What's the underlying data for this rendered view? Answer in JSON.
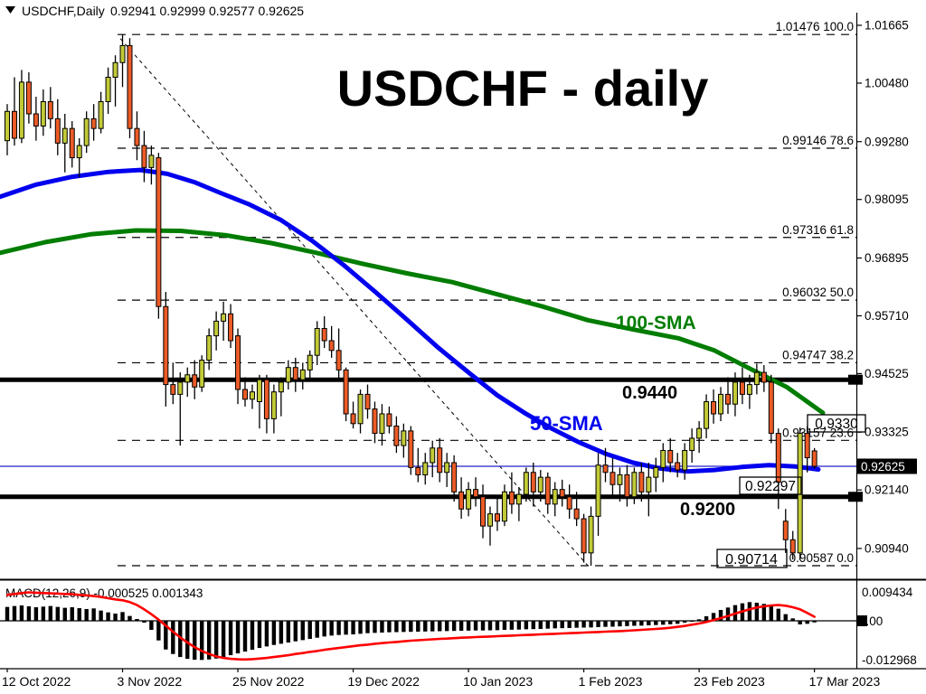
{
  "header": {
    "collapse_icon": "triangle-down-icon",
    "symbol": "USDCHF,Daily",
    "ohlc": "0.92941 0.92999 0.92577 0.92625"
  },
  "title": "USDCHF - daily",
  "overlays": {
    "sma100_label": "100-SMA",
    "sma50_label": "50-SMA",
    "resistance_label": "0.9440",
    "support_label": "0.9200",
    "annotations": [
      {
        "text": "0.9330"
      },
      {
        "text": "0.92297"
      },
      {
        "text": "0.90714"
      }
    ]
  },
  "price_axis": {
    "current_label": "0.92625",
    "current_price": 0.92625,
    "ticks": [
      {
        "label": "1.01665",
        "price": 1.01665
      },
      {
        "label": "1.00480",
        "price": 1.0048
      },
      {
        "label": "0.99280",
        "price": 0.9928
      },
      {
        "label": "0.98095",
        "price": 0.98095
      },
      {
        "label": "0.96895",
        "price": 0.96895
      },
      {
        "label": "0.95710",
        "price": 0.9571
      },
      {
        "label": "0.94525",
        "price": 0.94525
      },
      {
        "label": "0.93325",
        "price": 0.93325
      },
      {
        "label": "0.92140",
        "price": 0.9214
      },
      {
        "label": "0.90940",
        "price": 0.9094
      }
    ]
  },
  "time_axis": {
    "labels": [
      {
        "text": "12 Oct 2022",
        "i": 0
      },
      {
        "text": "3 Nov 2022",
        "i": 16
      },
      {
        "text": "25 Nov 2022",
        "i": 32
      },
      {
        "text": "19 Dec 2022",
        "i": 48
      },
      {
        "text": "10 Jan 2023",
        "i": 64
      },
      {
        "text": "1 Feb 2023",
        "i": 80
      },
      {
        "text": "23 Feb 2023",
        "i": 96
      },
      {
        "text": "17 Mar 2023",
        "i": 112
      }
    ]
  },
  "macd_panel": {
    "label": "MACD(12,26,9) -0.000525 0.001343",
    "axis_max": "0.009434",
    "axis_zero": "0.00",
    "axis_min": "-0.012968"
  },
  "colors": {
    "bull": "#c2cb37",
    "bear": "#ec5b26",
    "sma50": "#0000ee",
    "sma100": "#007d00",
    "signal": "#ff0000",
    "histogram": "#000000",
    "current_line": "#2323c8",
    "level_line": "#000000"
  },
  "chart_data": {
    "type": "candlestick",
    "symbol": "USDCHF",
    "timeframe": "Daily",
    "x_range": [
      "12 Oct 2022",
      "17 Mar 2023"
    ],
    "price_range_axis": [
      0.9094,
      1.01665
    ],
    "support_resistance": [
      {
        "label": "0.9440",
        "price": 0.944
      },
      {
        "label": "0.9200",
        "price": 0.92
      }
    ],
    "fib_levels": [
      {
        "price": 1.01476,
        "pct": "100.0",
        "label": "1.01476 100.0"
      },
      {
        "price": 0.99146,
        "pct": "78.6",
        "label": "0.99146 78.6"
      },
      {
        "price": 0.97316,
        "pct": "61.8",
        "label": "0.97316 61.8"
      },
      {
        "price": 0.96032,
        "pct": "50.0",
        "label": "0.96032 50.0"
      },
      {
        "price": 0.94747,
        "pct": "38.2",
        "label": "0.94747 38.2"
      },
      {
        "price": 0.93157,
        "pct": "23.6",
        "label": "0.93157 23.6"
      },
      {
        "price": 0.90587,
        "pct": "0.0",
        "label": "0.90587 0.0"
      }
    ],
    "trendline": {
      "i1": 15.7,
      "p1": 1.0139,
      "i2": 80.5,
      "p2": 0.906
    },
    "annotations": [
      {
        "text": "0.9330",
        "price": 0.933
      },
      {
        "text": "0.92297",
        "price": 0.92297
      },
      {
        "text": "0.90714",
        "price": 0.90714
      }
    ],
    "candles_format": [
      "open",
      "high",
      "low",
      "close"
    ],
    "candles": [
      [
        0.993,
        1.0005,
        0.99,
        0.999
      ],
      [
        0.999,
        1.006,
        0.992,
        0.9935
      ],
      [
        0.9935,
        1.0075,
        0.9925,
        1.005
      ],
      [
        1.005,
        1.007,
        0.9965,
        0.9985
      ],
      [
        0.9985,
        1.002,
        0.993,
        0.996
      ],
      [
        0.996,
        1.0035,
        0.994,
        1.001
      ],
      [
        1.001,
        1.004,
        0.9955,
        0.9975
      ],
      [
        0.9975,
        1.0015,
        0.99,
        0.9925
      ],
      [
        0.9925,
        0.9985,
        0.9865,
        0.9955
      ],
      [
        0.9955,
        0.997,
        0.9875,
        0.9895
      ],
      [
        0.9895,
        0.9935,
        0.9855,
        0.992
      ],
      [
        0.992,
        0.999,
        0.9905,
        0.9975
      ],
      [
        0.9975,
        1.0005,
        0.993,
        0.9955
      ],
      [
        0.9955,
        1.003,
        0.9945,
        1.001
      ],
      [
        1.001,
        1.008,
        0.9985,
        1.006
      ],
      [
        1.006,
        1.0105,
        1.0,
        1.009
      ],
      [
        1.009,
        1.01476,
        1.004,
        1.0125
      ],
      [
        1.0125,
        1.014,
        0.9935,
        0.9955
      ],
      [
        0.9955,
        0.999,
        0.989,
        0.992
      ],
      [
        0.992,
        0.995,
        0.9845,
        0.9875
      ],
      [
        0.9875,
        0.992,
        0.984,
        0.99
      ],
      [
        0.9895,
        0.9905,
        0.9565,
        0.959
      ],
      [
        0.959,
        0.962,
        0.9385,
        0.943
      ],
      [
        0.943,
        0.9475,
        0.939,
        0.941
      ],
      [
        0.941,
        0.9455,
        0.9305,
        0.9435
      ],
      [
        0.9435,
        0.9465,
        0.9405,
        0.945
      ],
      [
        0.945,
        0.948,
        0.94,
        0.9425
      ],
      [
        0.9425,
        0.949,
        0.9415,
        0.948
      ],
      [
        0.948,
        0.9545,
        0.946,
        0.953
      ],
      [
        0.953,
        0.958,
        0.95,
        0.956
      ],
      [
        0.956,
        0.96,
        0.952,
        0.9575
      ],
      [
        0.9575,
        0.9595,
        0.9505,
        0.952
      ],
      [
        0.953,
        0.9545,
        0.939,
        0.942
      ],
      [
        0.942,
        0.9445,
        0.9385,
        0.94
      ],
      [
        0.94,
        0.943,
        0.938,
        0.9415
      ],
      [
        0.9395,
        0.945,
        0.934,
        0.944
      ],
      [
        0.944,
        0.945,
        0.933,
        0.936
      ],
      [
        0.936,
        0.943,
        0.933,
        0.9415
      ],
      [
        0.9415,
        0.9445,
        0.9365,
        0.9435
      ],
      [
        0.9435,
        0.948,
        0.942,
        0.9465
      ],
      [
        0.9465,
        0.9485,
        0.9415,
        0.944
      ],
      [
        0.944,
        0.9475,
        0.942,
        0.946
      ],
      [
        0.946,
        0.95,
        0.944,
        0.949
      ],
      [
        0.949,
        0.956,
        0.947,
        0.9545
      ],
      [
        0.9545,
        0.957,
        0.9505,
        0.952
      ],
      [
        0.952,
        0.955,
        0.9485,
        0.95
      ],
      [
        0.95,
        0.9545,
        0.944,
        0.946
      ],
      [
        0.946,
        0.9465,
        0.9355,
        0.937
      ],
      [
        0.937,
        0.9395,
        0.934,
        0.935
      ],
      [
        0.935,
        0.942,
        0.933,
        0.941
      ],
      [
        0.941,
        0.943,
        0.936,
        0.938
      ],
      [
        0.938,
        0.9395,
        0.931,
        0.933
      ],
      [
        0.933,
        0.939,
        0.9305,
        0.937
      ],
      [
        0.937,
        0.9385,
        0.933,
        0.9345
      ],
      [
        0.9345,
        0.9365,
        0.929,
        0.9305
      ],
      [
        0.9305,
        0.935,
        0.928,
        0.9335
      ],
      [
        0.9335,
        0.9345,
        0.9245,
        0.926
      ],
      [
        0.926,
        0.93,
        0.923,
        0.9245
      ],
      [
        0.9245,
        0.929,
        0.9225,
        0.927
      ],
      [
        0.927,
        0.9315,
        0.924,
        0.93
      ],
      [
        0.93,
        0.932,
        0.923,
        0.925
      ],
      [
        0.925,
        0.929,
        0.922,
        0.927
      ],
      [
        0.927,
        0.9285,
        0.919,
        0.921
      ],
      [
        0.921,
        0.924,
        0.9155,
        0.9175
      ],
      [
        0.9175,
        0.923,
        0.916,
        0.9215
      ],
      [
        0.9215,
        0.924,
        0.918,
        0.92
      ],
      [
        0.92,
        0.9225,
        0.9115,
        0.914
      ],
      [
        0.914,
        0.918,
        0.91,
        0.9165
      ],
      [
        0.9165,
        0.92,
        0.913,
        0.915
      ],
      [
        0.915,
        0.9225,
        0.914,
        0.921
      ],
      [
        0.921,
        0.925,
        0.9165,
        0.9185
      ],
      [
        0.9185,
        0.922,
        0.915,
        0.9205
      ],
      [
        0.9205,
        0.926,
        0.919,
        0.925
      ],
      [
        0.925,
        0.927,
        0.918,
        0.921
      ],
      [
        0.921,
        0.9255,
        0.919,
        0.924
      ],
      [
        0.924,
        0.925,
        0.9165,
        0.9185
      ],
      [
        0.9185,
        0.923,
        0.916,
        0.9215
      ],
      [
        0.9215,
        0.9235,
        0.918,
        0.92
      ],
      [
        0.92,
        0.9225,
        0.9155,
        0.9175
      ],
      [
        0.9175,
        0.921,
        0.914,
        0.9155
      ],
      [
        0.9155,
        0.9165,
        0.9065,
        0.9085
      ],
      [
        0.9085,
        0.918,
        0.90587,
        0.916
      ],
      [
        0.916,
        0.929,
        0.912,
        0.9265
      ],
      [
        0.9265,
        0.93,
        0.923,
        0.925
      ],
      [
        0.925,
        0.928,
        0.92,
        0.9225
      ],
      [
        0.9225,
        0.926,
        0.919,
        0.9245
      ],
      [
        0.9245,
        0.9265,
        0.918,
        0.92
      ],
      [
        0.92,
        0.926,
        0.9185,
        0.925
      ],
      [
        0.925,
        0.927,
        0.919,
        0.921
      ],
      [
        0.921,
        0.927,
        0.916,
        0.924
      ],
      [
        0.924,
        0.928,
        0.921,
        0.926
      ],
      [
        0.926,
        0.931,
        0.923,
        0.9295
      ],
      [
        0.9295,
        0.932,
        0.925,
        0.927
      ],
      [
        0.927,
        0.929,
        0.924,
        0.9255
      ],
      [
        0.9255,
        0.931,
        0.9235,
        0.9295
      ],
      [
        0.9295,
        0.934,
        0.927,
        0.932
      ],
      [
        0.932,
        0.9355,
        0.929,
        0.934
      ],
      [
        0.934,
        0.941,
        0.932,
        0.9395
      ],
      [
        0.9395,
        0.942,
        0.935,
        0.937
      ],
      [
        0.937,
        0.9425,
        0.9355,
        0.941
      ],
      [
        0.941,
        0.9445,
        0.937,
        0.939
      ],
      [
        0.939,
        0.9455,
        0.9365,
        0.9435
      ],
      [
        0.9435,
        0.9465,
        0.939,
        0.941
      ],
      [
        0.941,
        0.945,
        0.938,
        0.943
      ],
      [
        0.943,
        0.9473,
        0.941,
        0.9455
      ],
      [
        0.9455,
        0.947,
        0.9415,
        0.9435
      ],
      [
        0.9435,
        0.945,
        0.931,
        0.933
      ],
      [
        0.933,
        0.934,
        0.9175,
        0.923
      ],
      [
        0.915,
        0.9175,
        0.9085,
        0.9112
      ],
      [
        0.9112,
        0.913,
        0.90714,
        0.9085
      ],
      [
        0.9085,
        0.9342,
        0.907,
        0.933
      ],
      [
        0.933,
        0.9345,
        0.925,
        0.928
      ],
      [
        0.92941,
        0.92999,
        0.92577,
        0.92625
      ]
    ],
    "sma50_points": [
      [
        0,
        0.9815
      ],
      [
        40,
        0.984
      ],
      [
        80,
        0.9856
      ],
      [
        120,
        0.9866
      ],
      [
        155,
        0.987
      ],
      [
        185,
        0.9862
      ],
      [
        215,
        0.9845
      ],
      [
        245,
        0.9822
      ],
      [
        275,
        0.98
      ],
      [
        310,
        0.9768
      ],
      [
        345,
        0.9725
      ],
      [
        380,
        0.9675
      ],
      [
        415,
        0.962
      ],
      [
        450,
        0.9563
      ],
      [
        485,
        0.9505
      ],
      [
        520,
        0.9452
      ],
      [
        550,
        0.9408
      ],
      [
        580,
        0.9372
      ],
      [
        610,
        0.934
      ],
      [
        640,
        0.9312
      ],
      [
        670,
        0.9288
      ],
      [
        700,
        0.927
      ],
      [
        730,
        0.9258
      ],
      [
        760,
        0.9252
      ],
      [
        790,
        0.9255
      ],
      [
        820,
        0.9261
      ],
      [
        850,
        0.9265
      ],
      [
        880,
        0.9262
      ],
      [
        905,
        0.9256
      ]
    ],
    "sma100_points": [
      [
        0,
        0.97
      ],
      [
        50,
        0.9722
      ],
      [
        100,
        0.9738
      ],
      [
        150,
        0.9746
      ],
      [
        200,
        0.9745
      ],
      [
        250,
        0.9736
      ],
      [
        300,
        0.972
      ],
      [
        350,
        0.97
      ],
      [
        400,
        0.9678
      ],
      [
        450,
        0.9658
      ],
      [
        500,
        0.964
      ],
      [
        550,
        0.9615
      ],
      [
        600,
        0.959
      ],
      [
        650,
        0.9562
      ],
      [
        700,
        0.9543
      ],
      [
        750,
        0.9525
      ],
      [
        790,
        0.95
      ],
      [
        830,
        0.9462
      ],
      [
        870,
        0.9425
      ],
      [
        910,
        0.9372
      ]
    ],
    "macd": {
      "indicator": "MACD(12,26,9)",
      "current_macd": -0.000525,
      "current_signal": 0.001343,
      "axis": {
        "max": 0.009434,
        "zero": 0.0,
        "min": -0.012968
      },
      "hist_x1000": [
        4.6,
        4.9,
        5.1,
        4.8,
        4.5,
        4.7,
        4.9,
        4.6,
        4.3,
        4.5,
        4.2,
        3.9,
        4.1,
        3.4,
        2.8,
        2.4,
        2.9,
        1.6,
        0.6,
        -0.6,
        -3.0,
        -6.5,
        -9.5,
        -11.0,
        -12.0,
        -12.6,
        -12.9,
        -12.968,
        -12.8,
        -12.5,
        -12.0,
        -11.4,
        -10.8,
        -10.2,
        -9.6,
        -9.0,
        -8.5,
        -8.0,
        -7.6,
        -7.2,
        -6.8,
        -6.4,
        -6.0,
        -5.6,
        -5.2,
        -4.9,
        -4.7,
        -4.6,
        -4.5,
        -4.3,
        -4.1,
        -4.0,
        -3.9,
        -3.8,
        -3.75,
        -3.7,
        -3.65,
        -3.6,
        -3.55,
        -3.5,
        -3.45,
        -3.4,
        -3.35,
        -3.3,
        -3.25,
        -3.2,
        -3.2,
        -3.15,
        -3.1,
        -3.0,
        -2.95,
        -2.9,
        -2.8,
        -2.75,
        -2.7,
        -2.6,
        -2.5,
        -2.45,
        -2.4,
        -2.3,
        -2.25,
        -2.2,
        -2.1,
        -2.0,
        -1.95,
        -1.85,
        -1.75,
        -1.65,
        -1.6,
        -1.5,
        -1.4,
        -1.3,
        -1.15,
        -1.0,
        -0.6,
        -0.2,
        0.5,
        1.5,
        2.6,
        3.6,
        4.4,
        5.2,
        5.8,
        6.2,
        6.0,
        5.6,
        5.0,
        4.0,
        2.2,
        0.8,
        -1.2,
        -1.0,
        -0.525
      ],
      "signal_x1000": [
        8.6,
        8.9,
        9.2,
        9.434,
        9.3,
        9.2,
        9.1,
        9.0,
        8.9,
        8.8,
        8.6,
        8.4,
        8.2,
        7.9,
        7.5,
        7.1,
        6.8,
        6.2,
        5.2,
        3.8,
        2.2,
        0.4,
        -1.6,
        -3.6,
        -5.5,
        -7.2,
        -8.7,
        -10.0,
        -11.0,
        -11.8,
        -12.3,
        -12.6,
        -12.75,
        -12.8,
        -12.7,
        -12.5,
        -12.3,
        -12.0,
        -11.7,
        -11.4,
        -11.0,
        -10.7,
        -10.3,
        -10.0,
        -9.6,
        -9.3,
        -9.0,
        -8.7,
        -8.4,
        -8.1,
        -7.9,
        -7.6,
        -7.4,
        -7.2,
        -7.0,
        -6.8,
        -6.6,
        -6.45,
        -6.3,
        -6.15,
        -6.0,
        -5.9,
        -5.75,
        -5.6,
        -5.5,
        -5.4,
        -5.3,
        -5.2,
        -5.1,
        -5.0,
        -4.9,
        -4.8,
        -4.7,
        -4.6,
        -4.5,
        -4.4,
        -4.3,
        -4.2,
        -4.1,
        -4.0,
        -3.9,
        -3.8,
        -3.7,
        -3.6,
        -3.5,
        -3.4,
        -3.3,
        -3.15,
        -3.0,
        -2.85,
        -2.7,
        -2.5,
        -2.3,
        -2.0,
        -1.7,
        -1.3,
        -0.9,
        -0.4,
        0.2,
        0.9,
        1.6,
        2.4,
        3.1,
        3.8,
        4.4,
        4.8,
        5.1,
        5.2,
        5.0,
        4.5,
        3.8,
        2.6,
        1.343
      ]
    }
  }
}
